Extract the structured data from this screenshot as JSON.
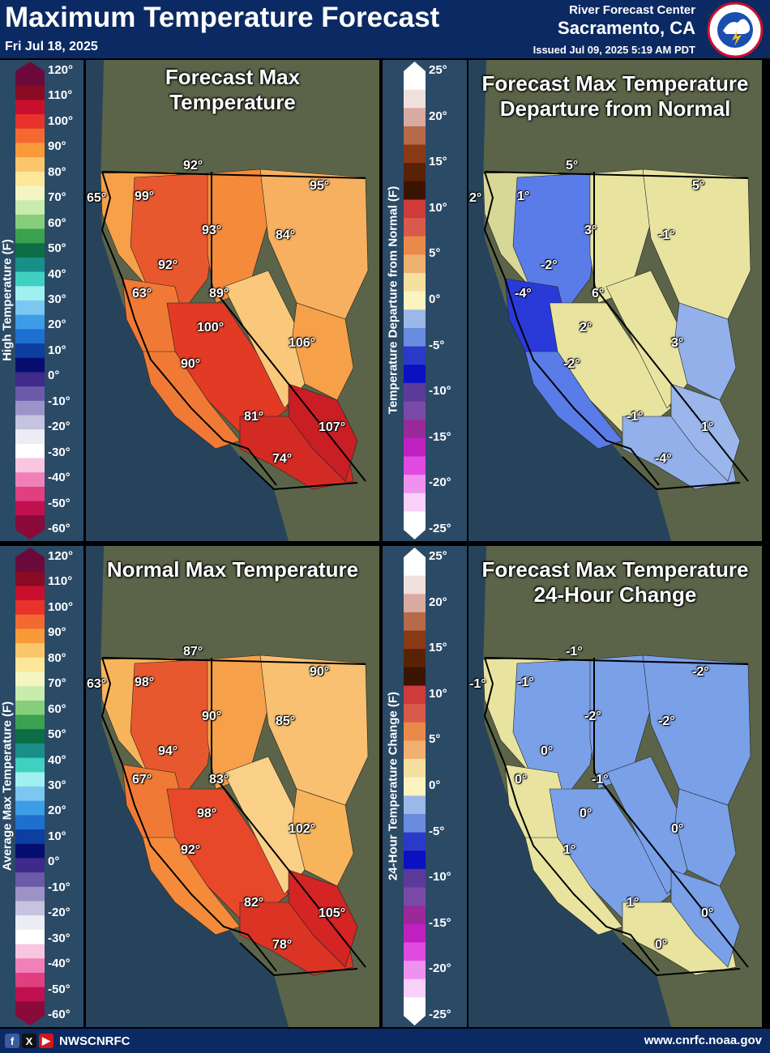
{
  "header": {
    "title": "Maximum Temperature Forecast",
    "date": "Fri Jul 18, 2025",
    "office_line1": "River Forecast Center",
    "office_line2": "Sacramento, CA",
    "issued": "Issued Jul 09, 2025 5:19 AM PDT",
    "logo_text": "NATIONAL WEATHER SERVICE"
  },
  "footer": {
    "handle": "NWSCNRFC",
    "url": "www.cnrfc.noaa.gov",
    "social_icons": [
      "facebook-icon",
      "x-icon",
      "youtube-icon"
    ]
  },
  "legends": {
    "temp_ticks": [
      "120°",
      "110°",
      "100°",
      "90°",
      "80°",
      "70°",
      "60°",
      "50°",
      "40°",
      "30°",
      "20°",
      "10°",
      "0°",
      "-10°",
      "-20°",
      "-30°",
      "-40°",
      "-50°",
      "-60°"
    ],
    "temp_colors": [
      "#6b0a3a",
      "#8a0a24",
      "#c8102e",
      "#e8322b",
      "#f26a30",
      "#f89a3a",
      "#fbc66b",
      "#fde79a",
      "#f4f5c2",
      "#c9ecae",
      "#86ce7c",
      "#3aa150",
      "#0c6e46",
      "#1a8f8a",
      "#3fd0c0",
      "#9ff0f0",
      "#7cc6f2",
      "#3d9ce6",
      "#1e6fd0",
      "#0d3ea0",
      "#060f70",
      "#3f2a8a",
      "#6a5aa8",
      "#9b93c8",
      "#c6c3e0",
      "#ececf4",
      "#ffffff",
      "#f8c6e0",
      "#f080b8",
      "#e0407f",
      "#c01050",
      "#8a0a3a"
    ],
    "temp_left_title": "High Temperature (F)",
    "temp_left_title_bottom": "Average Max Temperature (F)",
    "dep_ticks": [
      "25°",
      "20°",
      "15°",
      "10°",
      "5°",
      "0°",
      "-5°",
      "-10°",
      "-15°",
      "-20°",
      "-25°"
    ],
    "dep_colors": [
      "#ffffff",
      "#f0e0dc",
      "#d9aaa0",
      "#b66a4a",
      "#8a3a14",
      "#5a2204",
      "#3a1400",
      "#cf3b3b",
      "#d95a4a",
      "#e98a4a",
      "#f0b070",
      "#f6e0a0",
      "#fbf4c0",
      "#9cb8e8",
      "#6a8ce0",
      "#2a3ac8",
      "#0b10c0",
      "#5a3a9a",
      "#7a4aa8",
      "#9a2a9a",
      "#c020c0",
      "#e04ae0",
      "#f090f0",
      "#f8d0f8",
      "#ffffff"
    ],
    "dep_title": "Temperature Departure from Normal (F)",
    "change_title": "24-Hour Temperature Change (F)"
  },
  "panels": [
    {
      "title_line1": "Forecast Max",
      "title_line2": "Temperature",
      "labels": [
        "65°",
        "92°",
        "99°",
        "95°",
        "93°",
        "84°",
        "92°",
        "63°",
        "89°",
        "100°",
        "106°",
        "90°",
        "81°",
        "107°",
        "74°"
      ]
    },
    {
      "title_line1": "Forecast Max Temperature",
      "title_line2": "Departure from Normal",
      "labels": [
        "2°",
        "5°",
        "1°",
        "5°",
        "3°",
        "-1°",
        "-2°",
        "-4°",
        "6°",
        "2°",
        "3°",
        "-2°",
        "-1°",
        "1°",
        "-4°"
      ]
    },
    {
      "title_line1": "Normal Max Temperature",
      "title_line2": "",
      "labels": [
        "63°",
        "87°",
        "98°",
        "90°",
        "90°",
        "85°",
        "94°",
        "67°",
        "83°",
        "98°",
        "102°",
        "92°",
        "82°",
        "105°",
        "78°"
      ]
    },
    {
      "title_line1": "Forecast Max Temperature",
      "title_line2": "24-Hour Change",
      "labels": [
        "-1°",
        "-1°",
        "-1°",
        "-2°",
        "-2°",
        "-2°",
        "0°",
        "0°",
        "-1°",
        "0°",
        "0°",
        "1°",
        "1°",
        "0°",
        "0°"
      ]
    }
  ]
}
